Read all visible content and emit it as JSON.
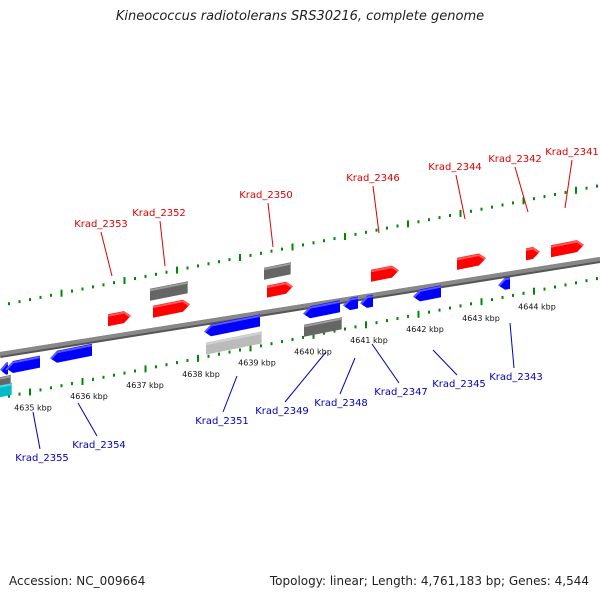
{
  "header": {
    "title": "Kineococcus radiotolerans SRS30216, complete genome"
  },
  "footer": {
    "accession": "Accession: NC_009664",
    "summary": "Topology: linear; Length: 4,761,183 bp; Genes: 4,544"
  },
  "colors": {
    "forward_gene": "#ff0000",
    "reverse_gene": "#0000ff",
    "gray_gene": "#666666",
    "light_gene": "#bbbbbb",
    "cyan_gene": "#00bbcc",
    "tick": "#008800",
    "backbone": "#888888",
    "forward_label": "#dd0000",
    "reverse_label": "#0000bb"
  },
  "scale_labels": [
    "4635 kbp",
    "4636 kbp",
    "4637 kbp",
    "4638 kbp",
    "4639 kbp",
    "4640 kbp",
    "4641 kbp",
    "4642 kbp",
    "4643 kbp",
    "4644 kbp"
  ],
  "gene_labels_top": [
    "Krad_2353",
    "Krad_2352",
    "Krad_2350",
    "Krad_2346",
    "Krad_2344",
    "Krad_2342",
    "Krad_2341"
  ],
  "gene_labels_bottom": [
    "Krad_2355",
    "Krad_2354",
    "Krad_2351",
    "Krad_2349",
    "Krad_2348",
    "Krad_2347",
    "Krad_2345",
    "Krad_2343"
  ]
}
